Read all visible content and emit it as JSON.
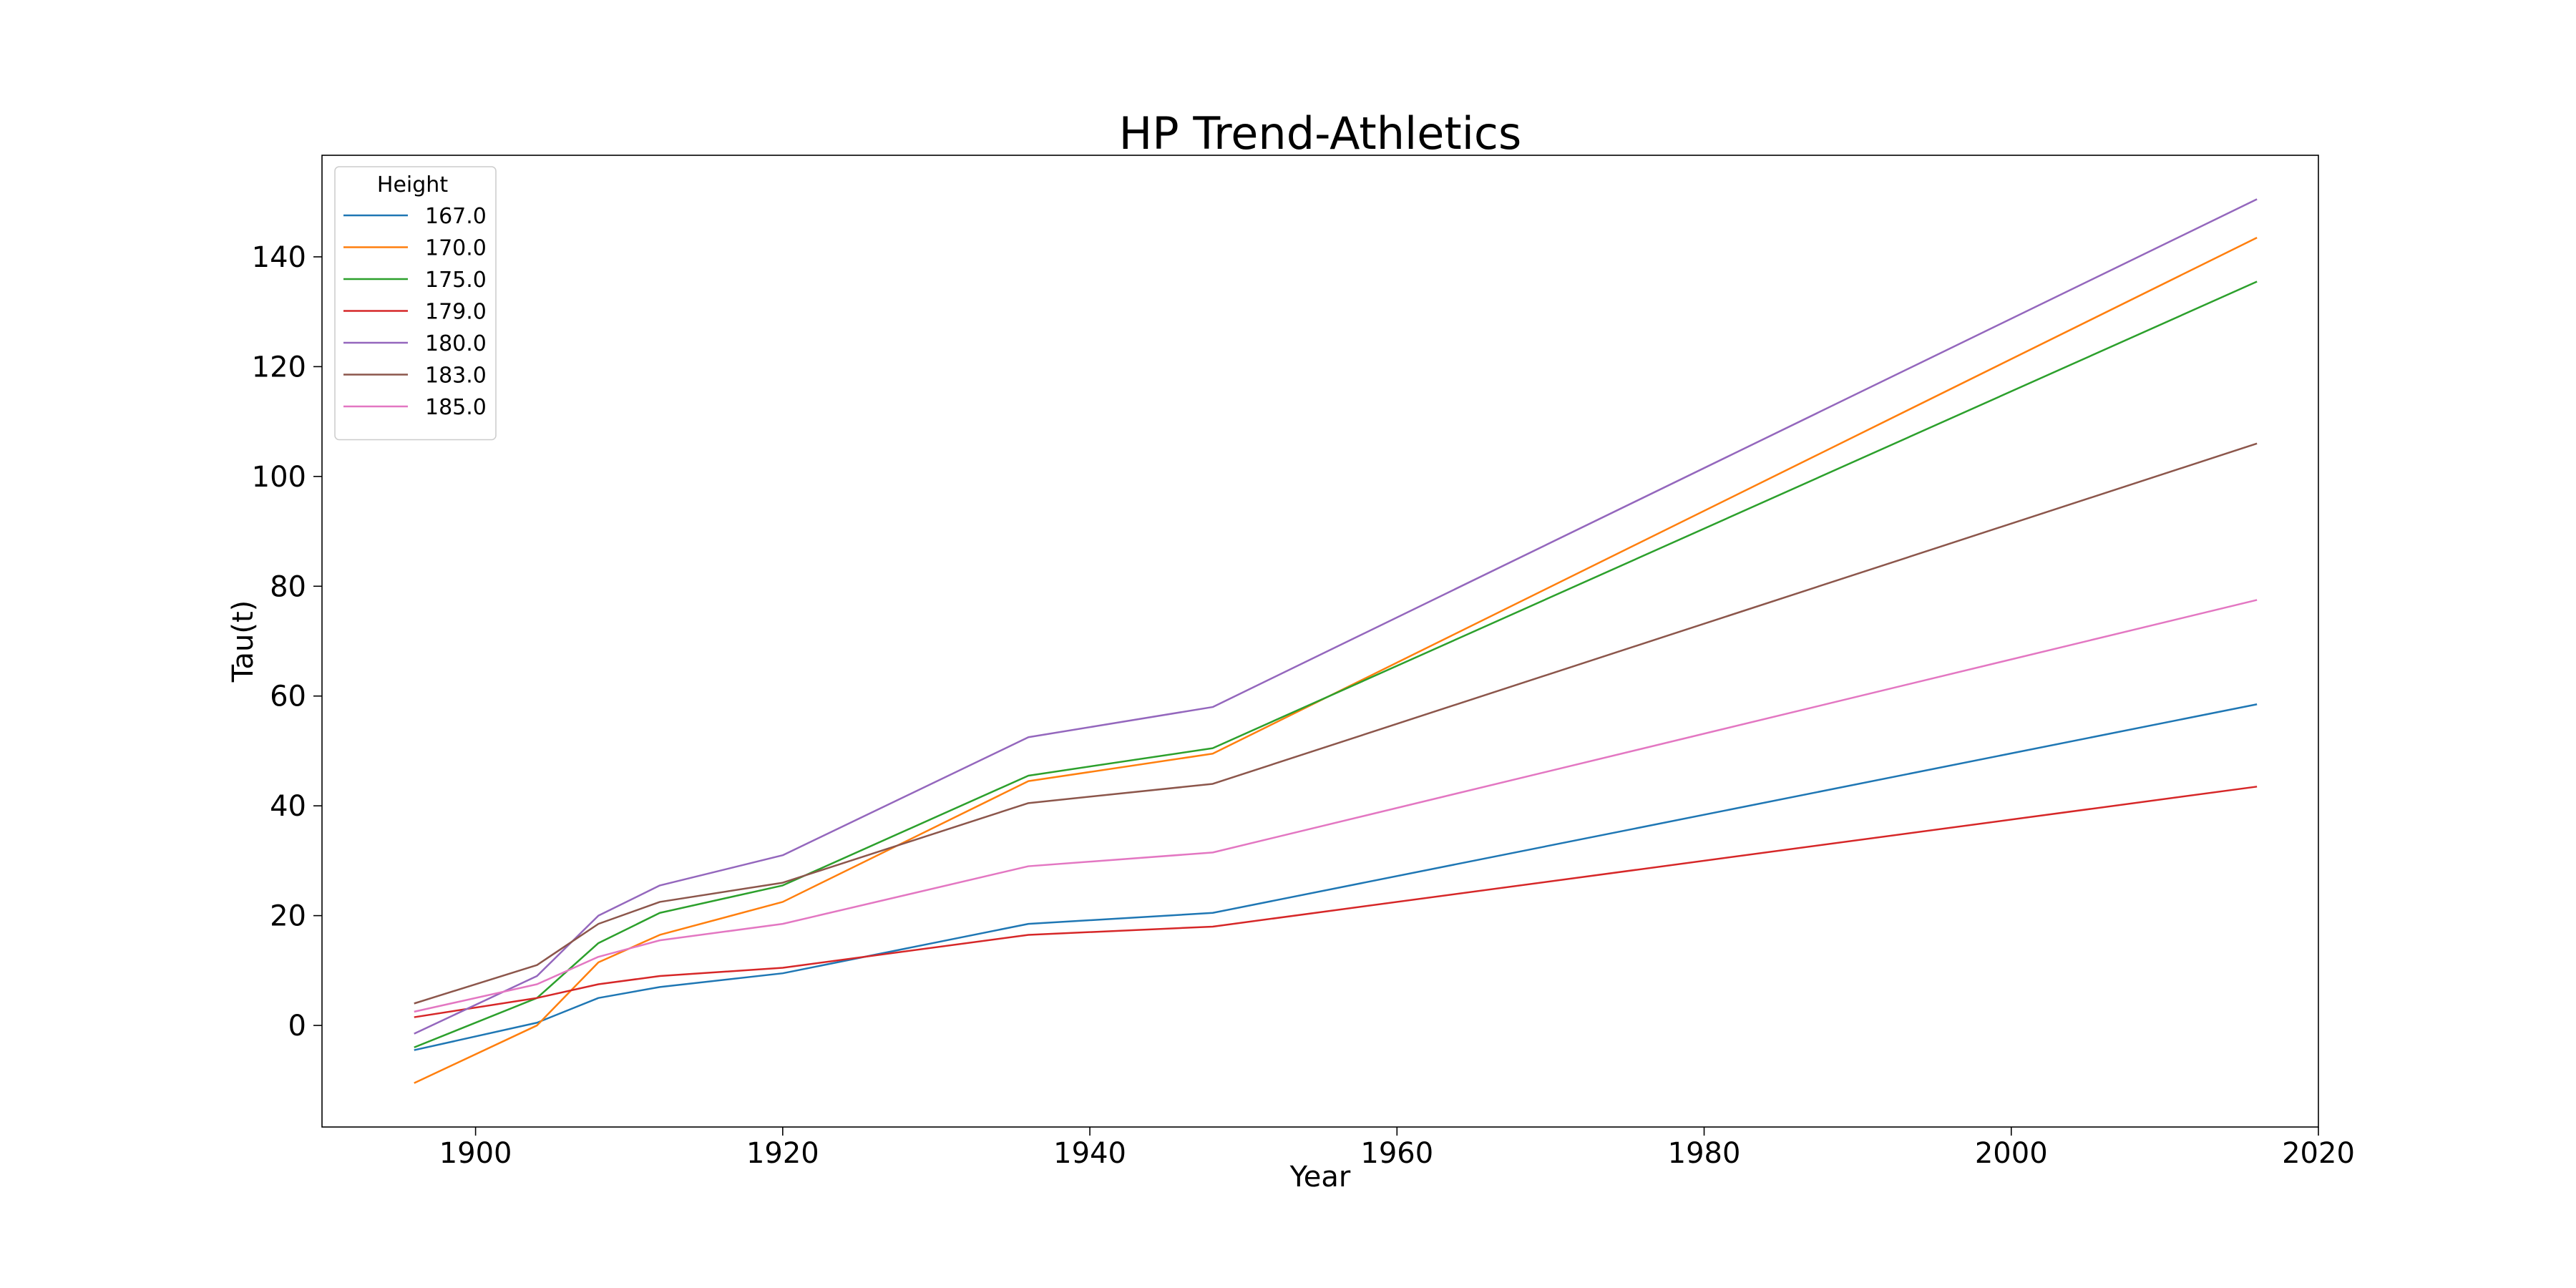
{
  "chart_data": {
    "type": "line",
    "title": "HP Trend-Athletics",
    "xlabel": "Year",
    "ylabel": "Tau(t)",
    "xlim": [
      1890,
      2020
    ],
    "ylim": [
      -18.5,
      158.5
    ],
    "xticks": [
      1900,
      1920,
      1940,
      1960,
      1980,
      2000,
      2020
    ],
    "yticks": [
      0,
      20,
      40,
      60,
      80,
      100,
      120,
      140
    ],
    "grid": false,
    "legend": {
      "title": "Height",
      "position": "top-left"
    },
    "x": [
      1896,
      1904,
      1908,
      1912,
      1920,
      1936,
      1948,
      2016
    ],
    "series": [
      {
        "name": "167.0",
        "color": "#1f77b4",
        "values": [
          -4.5,
          0.5,
          5,
          7,
          9.5,
          18.5,
          20.5,
          58.5
        ]
      },
      {
        "name": "170.0",
        "color": "#ff7f0e",
        "values": [
          -10.5,
          0,
          11.5,
          16.5,
          22.5,
          44.5,
          49.5,
          143.5
        ]
      },
      {
        "name": "175.0",
        "color": "#2ca02c",
        "values": [
          -4,
          5,
          15,
          20.5,
          25.5,
          45.5,
          50.5,
          135.5
        ]
      },
      {
        "name": "179.0",
        "color": "#d62728",
        "values": [
          1.5,
          5,
          7.5,
          9,
          10.5,
          16.5,
          18,
          43.5
        ]
      },
      {
        "name": "180.0",
        "color": "#9467bd",
        "values": [
          -1.5,
          9,
          20,
          25.5,
          31,
          52.5,
          58,
          150.5
        ]
      },
      {
        "name": "183.0",
        "color": "#8c564b",
        "values": [
          4,
          11,
          18.5,
          22.5,
          26,
          40.5,
          44,
          106
        ]
      },
      {
        "name": "185.0",
        "color": "#e377c2",
        "values": [
          2.5,
          7.5,
          12.5,
          15.5,
          18.5,
          29,
          31.5,
          77.5
        ]
      }
    ]
  }
}
